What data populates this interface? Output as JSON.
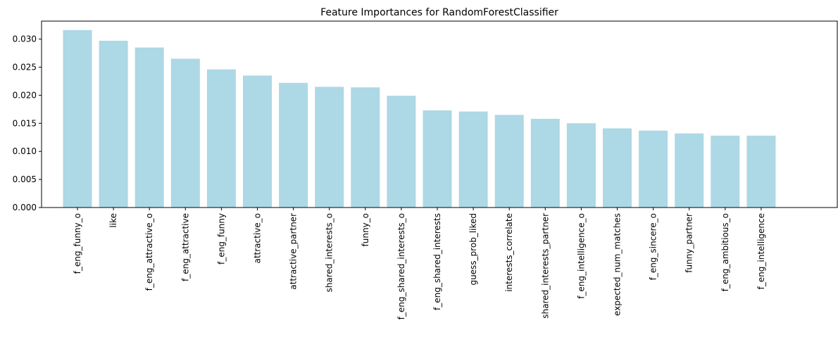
{
  "chart_data": {
    "type": "bar",
    "title": "Feature Importances for RandomForestClassifier",
    "xlabel": "",
    "ylabel": "",
    "categories": [
      "f_eng_funny_o",
      "like",
      "f_eng_attractive_o",
      "f_eng_attractive",
      "f_eng_funny",
      "attractive_o",
      "attractive_partner",
      "shared_interests_o",
      "funny_o",
      "f_eng_shared_interests_o",
      "f_eng_shared_interests",
      "guess_prob_liked",
      "interests_correlate",
      "shared_interests_partner",
      "f_eng_intelligence_o",
      "expected_num_matches",
      "f_eng_sincere_o",
      "funny_partner",
      "f_eng_ambitious_o",
      "f_eng_intelligence"
    ],
    "values": [
      0.0316,
      0.0297,
      0.0285,
      0.0265,
      0.0246,
      0.0235,
      0.0222,
      0.0215,
      0.0214,
      0.0199,
      0.0173,
      0.0171,
      0.0165,
      0.0158,
      0.015,
      0.0141,
      0.0137,
      0.0132,
      0.0128,
      0.0128
    ],
    "yticks": [
      "0.000",
      "0.005",
      "0.010",
      "0.015",
      "0.020",
      "0.025",
      "0.030"
    ],
    "ylim": [
      0,
      0.0332
    ],
    "bar_color": "#add8e6",
    "grid": false
  }
}
